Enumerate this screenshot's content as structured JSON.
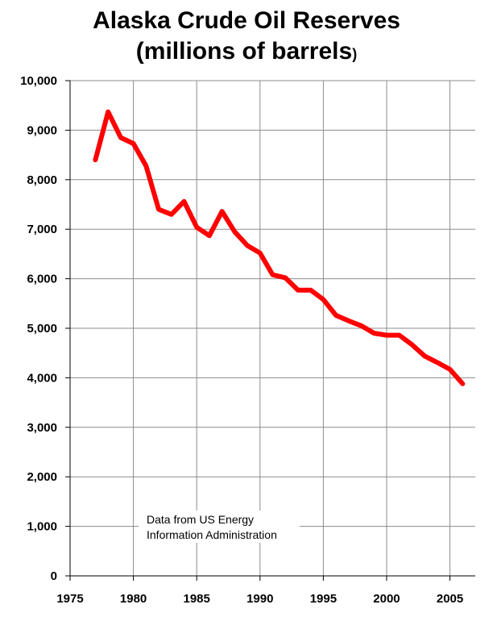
{
  "chart_data": {
    "type": "line",
    "title_line1": "Alaska Crude Oil Reserves",
    "title_line2_main": "(millions of barrels",
    "title_line2_close": ")",
    "xlabel": "",
    "ylabel": "",
    "xlim": [
      1975,
      2007
    ],
    "ylim": [
      0,
      10000
    ],
    "x_ticks": [
      1975,
      1980,
      1985,
      1990,
      1995,
      2000,
      2005
    ],
    "x_tick_labels": [
      "1975",
      "1980",
      "1985",
      "1990",
      "1995",
      "2000",
      "2005"
    ],
    "y_ticks": [
      0,
      1000,
      2000,
      3000,
      4000,
      5000,
      6000,
      7000,
      8000,
      9000,
      10000
    ],
    "y_tick_labels": [
      "0",
      "1,000",
      "2,000",
      "3,000",
      "4,000",
      "5,000",
      "6,000",
      "7,000",
      "8,000",
      "9,000",
      "10,000"
    ],
    "grid": true,
    "line_color": "#ff0000",
    "series": [
      {
        "x": [
          1977,
          1978,
          1979,
          1980,
          1981,
          1982,
          1983,
          1984,
          1985,
          1986,
          1987,
          1988,
          1989,
          1990,
          1991,
          1992,
          1993,
          1994,
          1995,
          1996,
          1997,
          1998,
          1999,
          2000,
          2001,
          2002,
          2003,
          2004,
          2005,
          2006
        ],
        "values": [
          8400,
          9370,
          8850,
          8730,
          8280,
          7400,
          7300,
          7560,
          7040,
          6870,
          7360,
          6950,
          6670,
          6520,
          6080,
          6020,
          5770,
          5770,
          5580,
          5260,
          5150,
          5050,
          4900,
          4860,
          4860,
          4670,
          4440,
          4310,
          4170,
          3880
        ]
      }
    ],
    "annotation_line1": "Data from US Energy",
    "annotation_line2": "Information Administration"
  }
}
